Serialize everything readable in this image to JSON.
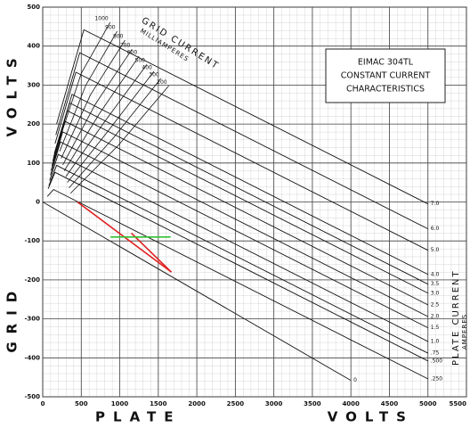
{
  "chart_data": {
    "type": "line",
    "title_lines": [
      "EIMAC 304TL",
      "CONSTANT CURRENT",
      "CHARACTERISTICS"
    ],
    "x_label": "PLATE VOLTS",
    "y_label": "GRID VOLTS",
    "grid_current_label": [
      "GRID CURRENT",
      "MILLIAMPERES"
    ],
    "plate_current_label": [
      "PLATE CURRENT",
      "AMPERES"
    ],
    "xlim": [
      0,
      5500
    ],
    "ylim": [
      -500,
      500
    ],
    "xticks": [
      0,
      500,
      1000,
      1500,
      2000,
      2500,
      3000,
      3500,
      4000,
      4500,
      5000,
      5500
    ],
    "yticks": [
      500,
      400,
      300,
      200,
      100,
      0,
      -100,
      -200,
      -300,
      -400,
      -500
    ],
    "grid": true,
    "series": [
      {
        "name": "7.0",
        "color": "#111111",
        "x": [
          180,
          534,
          5000
        ],
        "values": [
          200,
          442,
          -5
        ]
      },
      {
        "name": "6.0",
        "color": "#111111",
        "x": [
          170,
          480,
          5000
        ],
        "values": [
          172,
          383,
          -69
        ]
      },
      {
        "name": "5.0",
        "color": "#111111",
        "x": [
          160,
          430,
          5000
        ],
        "values": [
          150,
          333,
          -124
        ]
      },
      {
        "name": "4.0",
        "color": "#111111",
        "x": [
          150,
          380,
          5000
        ],
        "values": [
          124,
          276,
          -186
        ]
      },
      {
        "name": "3.5",
        "color": "#111111",
        "x": [
          140,
          350,
          5000
        ],
        "values": [
          114,
          254,
          -211
        ]
      },
      {
        "name": "3.0",
        "color": "#111111",
        "x": [
          130,
          320,
          5000
        ],
        "values": [
          105,
          234,
          -234
        ]
      },
      {
        "name": "2.5",
        "color": "#111111",
        "x": [
          120,
          290,
          5000
        ],
        "values": [
          93,
          207,
          -264
        ]
      },
      {
        "name": "2.0",
        "color": "#111111",
        "x": [
          110,
          260,
          5000
        ],
        "values": [
          81,
          180,
          -294
        ]
      },
      {
        "name": "1.5",
        "color": "#111111",
        "x": [
          100,
          230,
          5000
        ],
        "values": [
          69,
          154,
          -323
        ]
      },
      {
        "name": "1.0",
        "color": "#111111",
        "x": [
          90,
          200,
          5000
        ],
        "values": [
          55,
          122,
          -358
        ]
      },
      {
        "name": ".75",
        "color": "#111111",
        "x": [
          80,
          180,
          5000
        ],
        "values": [
          42,
          94,
          -388
        ]
      },
      {
        "name": ".500",
        "color": "#111111",
        "x": [
          70,
          160,
          5000
        ],
        "values": [
          34,
          76,
          -408
        ]
      },
      {
        "name": ".250",
        "color": "#111111",
        "x": [
          60,
          140,
          5000
        ],
        "values": [
          14,
          32,
          -454
        ]
      },
      {
        "name": "0",
        "color": "#111111",
        "x": [
          0,
          4000
        ],
        "values": [
          0,
          -458
        ]
      }
    ],
    "grid_current_series": [
      {
        "name": "1000",
        "color": "#111111",
        "x": [
          875,
          500,
          200
        ],
        "values": [
          461,
          330,
          150
        ]
      },
      {
        "name": "900",
        "color": "#111111",
        "x": [
          966,
          560,
          220
        ],
        "values": [
          438,
          300,
          130
        ]
      },
      {
        "name": "800",
        "color": "#111111",
        "x": [
          1068,
          620,
          240
        ],
        "values": [
          415,
          275,
          112
        ]
      },
      {
        "name": "700",
        "color": "#111111",
        "x": [
          1159,
          680,
          260
        ],
        "values": [
          392,
          250,
          95
        ]
      },
      {
        "name": "600",
        "color": "#111111",
        "x": [
          1250,
          740,
          280
        ],
        "values": [
          374,
          228,
          80
        ]
      },
      {
        "name": "500",
        "color": "#111111",
        "x": [
          1352,
          800,
          300
        ],
        "values": [
          353,
          205,
          65
        ]
      },
      {
        "name": "400",
        "color": "#111111",
        "x": [
          1443,
          860,
          320
        ],
        "values": [
          335,
          185,
          50
        ]
      },
      {
        "name": "300",
        "color": "#111111",
        "x": [
          1534,
          920,
          340
        ],
        "values": [
          317,
          165,
          36
        ]
      },
      {
        "name": "200",
        "color": "#111111",
        "x": [
          1636,
          980,
          360
        ],
        "values": [
          298,
          145,
          22
        ]
      }
    ],
    "overlays": [
      {
        "color": "#e02020",
        "x": [
          450,
          1670
        ],
        "values": [
          0,
          -180
        ]
      },
      {
        "color": "#e02020",
        "x": [
          1150,
          1670
        ],
        "values": [
          -80,
          -180
        ]
      },
      {
        "color": "#30c030",
        "x": [
          880,
          1660
        ],
        "values": [
          -90,
          -90
        ]
      }
    ]
  }
}
